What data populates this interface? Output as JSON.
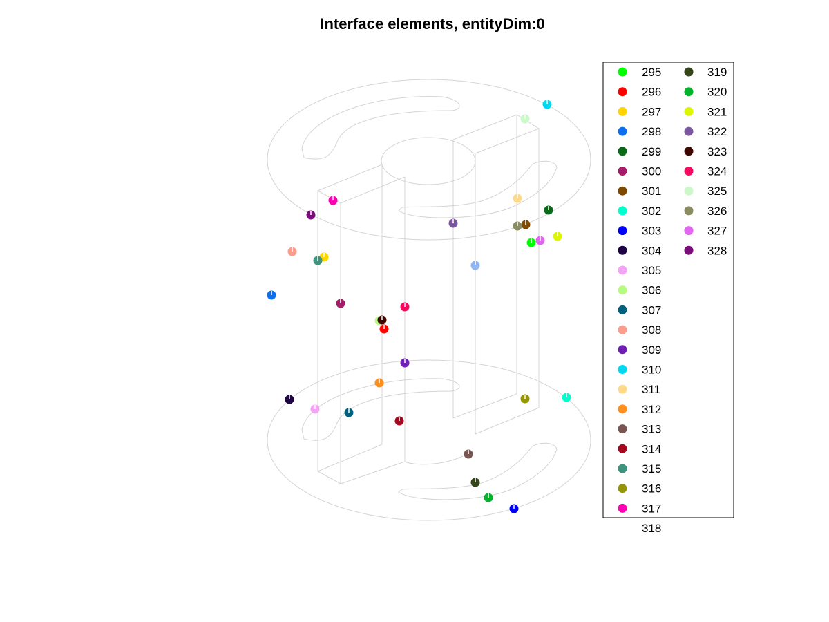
{
  "chart_data": {
    "type": "scatter",
    "title": "Interface elements, entityDim:0",
    "xlabel": "",
    "ylabel": "",
    "grid": false,
    "legend_placement": "top-right",
    "series": [
      {
        "name": "295",
        "color": "#00ff00"
      },
      {
        "name": "296",
        "color": "#ff0000"
      },
      {
        "name": "297",
        "color": "#ffd500"
      },
      {
        "name": "298",
        "color": "#0b6ff0"
      },
      {
        "name": "299",
        "color": "#086a16"
      },
      {
        "name": "300",
        "color": "#a51c6a"
      },
      {
        "name": "301",
        "color": "#7e4a00"
      },
      {
        "name": "302",
        "color": "#00ffcc"
      },
      {
        "name": "303",
        "color": "#0000ff"
      },
      {
        "name": "304",
        "color": "#1f0444"
      },
      {
        "name": "305",
        "color": "#f2a5f5"
      },
      {
        "name": "306",
        "color": "#b5fb7e"
      },
      {
        "name": "307",
        "color": "#00617f"
      },
      {
        "name": "308",
        "color": "#fb9c8c"
      },
      {
        "name": "309",
        "color": "#6f1fb3"
      },
      {
        "name": "310",
        "color": "#00d9ef"
      },
      {
        "name": "311",
        "color": "#ffd98a"
      },
      {
        "name": "312",
        "color": "#ff8f1a"
      },
      {
        "name": "313",
        "color": "#7a5652"
      },
      {
        "name": "314",
        "color": "#a5071f"
      },
      {
        "name": "315",
        "color": "#3f947d"
      },
      {
        "name": "316",
        "color": "#949405"
      },
      {
        "name": "317",
        "color": "#ff00b3"
      },
      {
        "name": "318",
        "color": "#8fb5f5"
      },
      {
        "name": "319",
        "color": "#344619"
      },
      {
        "name": "320",
        "color": "#00b32b"
      },
      {
        "name": "321",
        "color": "#dbf600"
      },
      {
        "name": "322",
        "color": "#7b57a0"
      },
      {
        "name": "323",
        "color": "#3d0700"
      },
      {
        "name": "324",
        "color": "#f5085e"
      },
      {
        "name": "325",
        "color": "#ccf7c8"
      },
      {
        "name": "326",
        "color": "#8b8c61"
      },
      {
        "name": "327",
        "color": "#e166f0"
      },
      {
        "name": "328",
        "color": "#7a0d7a"
      }
    ]
  }
}
